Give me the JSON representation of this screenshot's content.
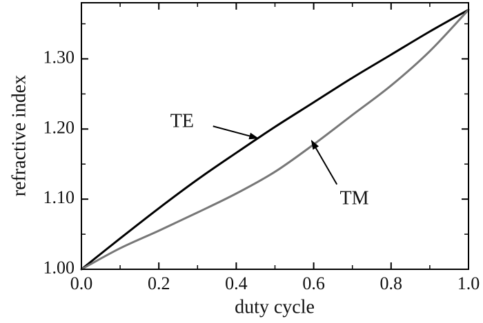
{
  "chart_data": {
    "type": "line",
    "xlabel": "duty cycle",
    "ylabel": "refractive index",
    "xlim": [
      0.0,
      1.0
    ],
    "ylim": [
      1.0,
      1.38
    ],
    "x_major_ticks": [
      0.0,
      0.2,
      0.4,
      0.6,
      0.8,
      1.0
    ],
    "x_tick_labels": [
      "0.0",
      "0.2",
      "0.4",
      "0.6",
      "0.8",
      "1.0"
    ],
    "y_major_ticks": [
      1.0,
      1.1,
      1.2,
      1.3
    ],
    "y_tick_labels": [
      "1.00",
      "1.10",
      "1.20",
      "1.30"
    ],
    "x_minor_ticks": [
      0.1,
      0.3,
      0.5,
      0.7,
      0.9
    ],
    "y_minor_ticks": [
      1.05,
      1.15,
      1.25,
      1.35
    ],
    "grid": false,
    "series": [
      {
        "name": "TE",
        "color": "#000000",
        "x": [
          0.0,
          0.1,
          0.2,
          0.3,
          0.4,
          0.5,
          0.6,
          0.7,
          0.8,
          0.9,
          1.0
        ],
        "values": [
          1.0,
          1.044,
          1.087,
          1.128,
          1.166,
          1.203,
          1.238,
          1.273,
          1.306,
          1.339,
          1.37
        ]
      },
      {
        "name": "TM",
        "color": "#777777",
        "x": [
          0.0,
          0.1,
          0.2,
          0.3,
          0.4,
          0.5,
          0.6,
          0.7,
          0.8,
          0.9,
          1.0
        ],
        "values": [
          1.0,
          1.03,
          1.055,
          1.081,
          1.108,
          1.139,
          1.178,
          1.22,
          1.262,
          1.311,
          1.37
        ]
      }
    ],
    "annotations": [
      {
        "text": "TE",
        "text_x": 0.26,
        "text_y": 1.209,
        "arrow_from": [
          0.34,
          1.204
        ],
        "arrow_to": [
          0.455,
          1.187
        ]
      },
      {
        "text": "TM",
        "text_x": 0.705,
        "text_y": 1.099,
        "arrow_from": [
          0.66,
          1.121
        ],
        "arrow_to": [
          0.595,
          1.183
        ]
      }
    ]
  }
}
